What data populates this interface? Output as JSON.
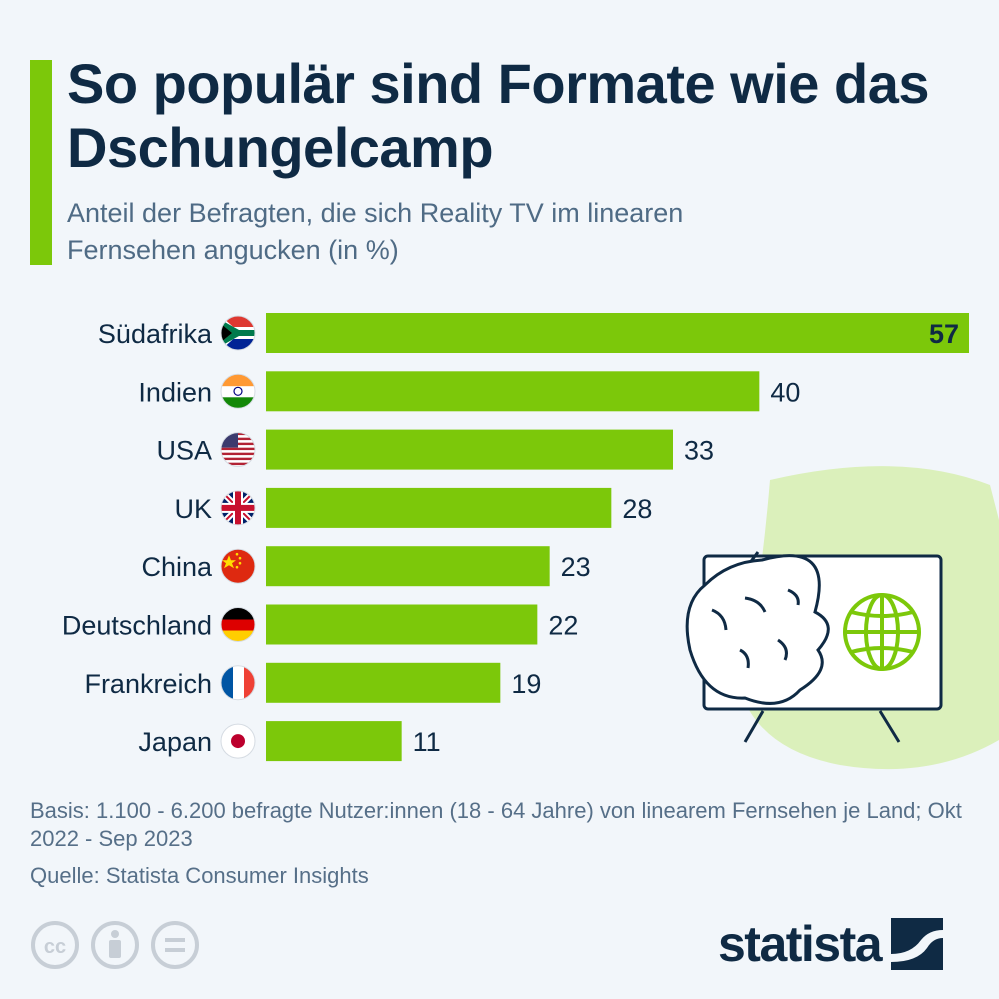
{
  "header": {
    "title": "So populär sind Formate wie das Dschungelcamp",
    "subtitle": "Anteil der Befragten, die sich Reality TV im linearen Fernsehen angucken (in %)"
  },
  "colors": {
    "bar": "#7cc80a",
    "text_dark": "#0f2a44",
    "text_muted": "#566f88",
    "background": "#f2f6fa"
  },
  "chart_data": {
    "type": "bar",
    "orientation": "horizontal",
    "categories": [
      "Südafrika",
      "Indien",
      "USA",
      "UK",
      "China",
      "Deutschland",
      "Frankreich",
      "Japan"
    ],
    "values": [
      57,
      40,
      33,
      28,
      23,
      22,
      19,
      11
    ],
    "value_labels": [
      "57",
      "40",
      "33",
      "28",
      "23",
      "22",
      "19",
      "11"
    ],
    "flag_icons": [
      "south-africa-flag-icon",
      "india-flag-icon",
      "usa-flag-icon",
      "uk-flag-icon",
      "china-flag-icon",
      "germany-flag-icon",
      "france-flag-icon",
      "japan-flag-icon"
    ],
    "title": "So populär sind Formate wie das Dschungelcamp",
    "subtitle": "Anteil der Befragten, die sich Reality TV im linearen Fernsehen angucken (in %)",
    "xlim": [
      0,
      57
    ]
  },
  "illustration": "tv-jungle-leaf-globe-icon",
  "footer": {
    "basis": "Basis: 1.100 - 6.200 befragte Nutzer:innen (18 - 64 Jahre) von linearem Fernsehen je Land; Okt 2022 - Sep 2023",
    "source": "Quelle: Statista Consumer Insights",
    "license_icons": [
      "cc-icon",
      "attribution-icon",
      "no-derivatives-icon"
    ],
    "cc_label": "cc",
    "brand": "statista"
  }
}
